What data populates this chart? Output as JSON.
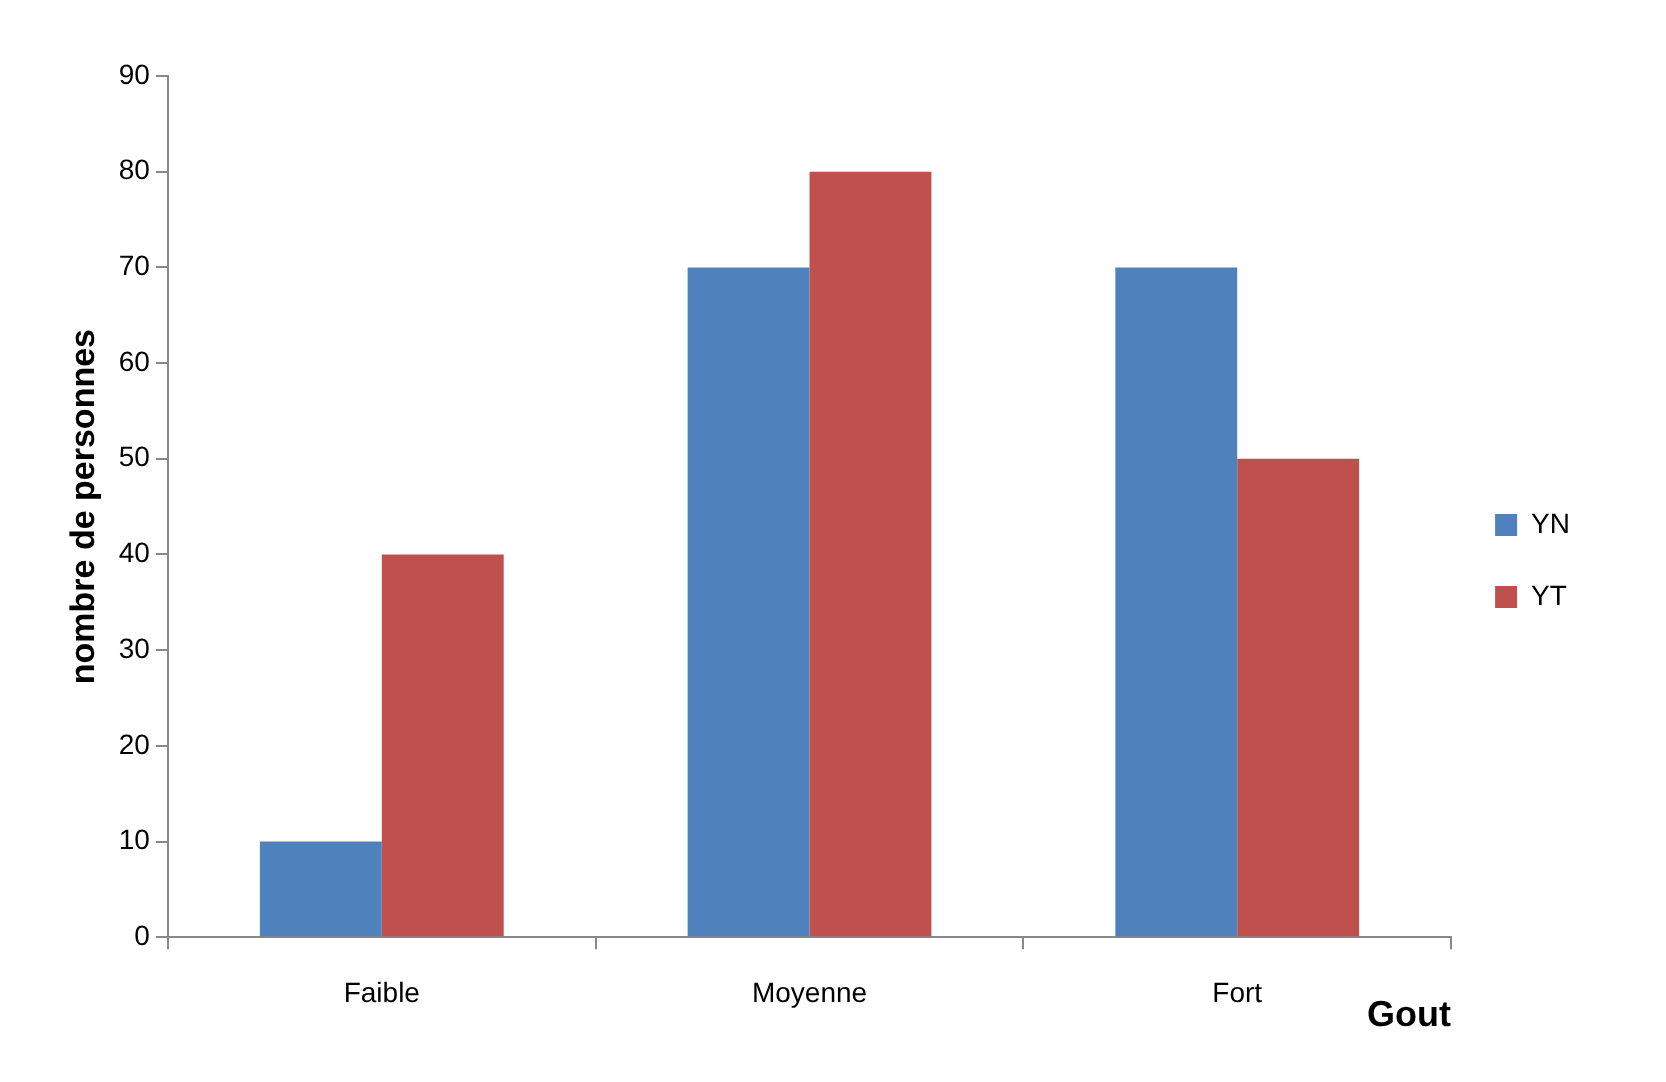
{
  "chart_data": {
    "type": "bar",
    "xlabel": "Gout",
    "ylabel": "nombre de personnes",
    "categories": [
      "Faible",
      "Moyenne",
      "Fort"
    ],
    "series": [
      {
        "name": "YN",
        "color": "#4f81bd",
        "values": [
          10,
          70,
          70
        ]
      },
      {
        "name": "YT",
        "color": "#c0504d",
        "values": [
          40,
          80,
          50
        ]
      }
    ],
    "ylim": [
      0,
      90
    ],
    "yticks": [
      0,
      10,
      20,
      30,
      40,
      50,
      60,
      70,
      80,
      90
    ],
    "grid": false,
    "legend": "right"
  }
}
